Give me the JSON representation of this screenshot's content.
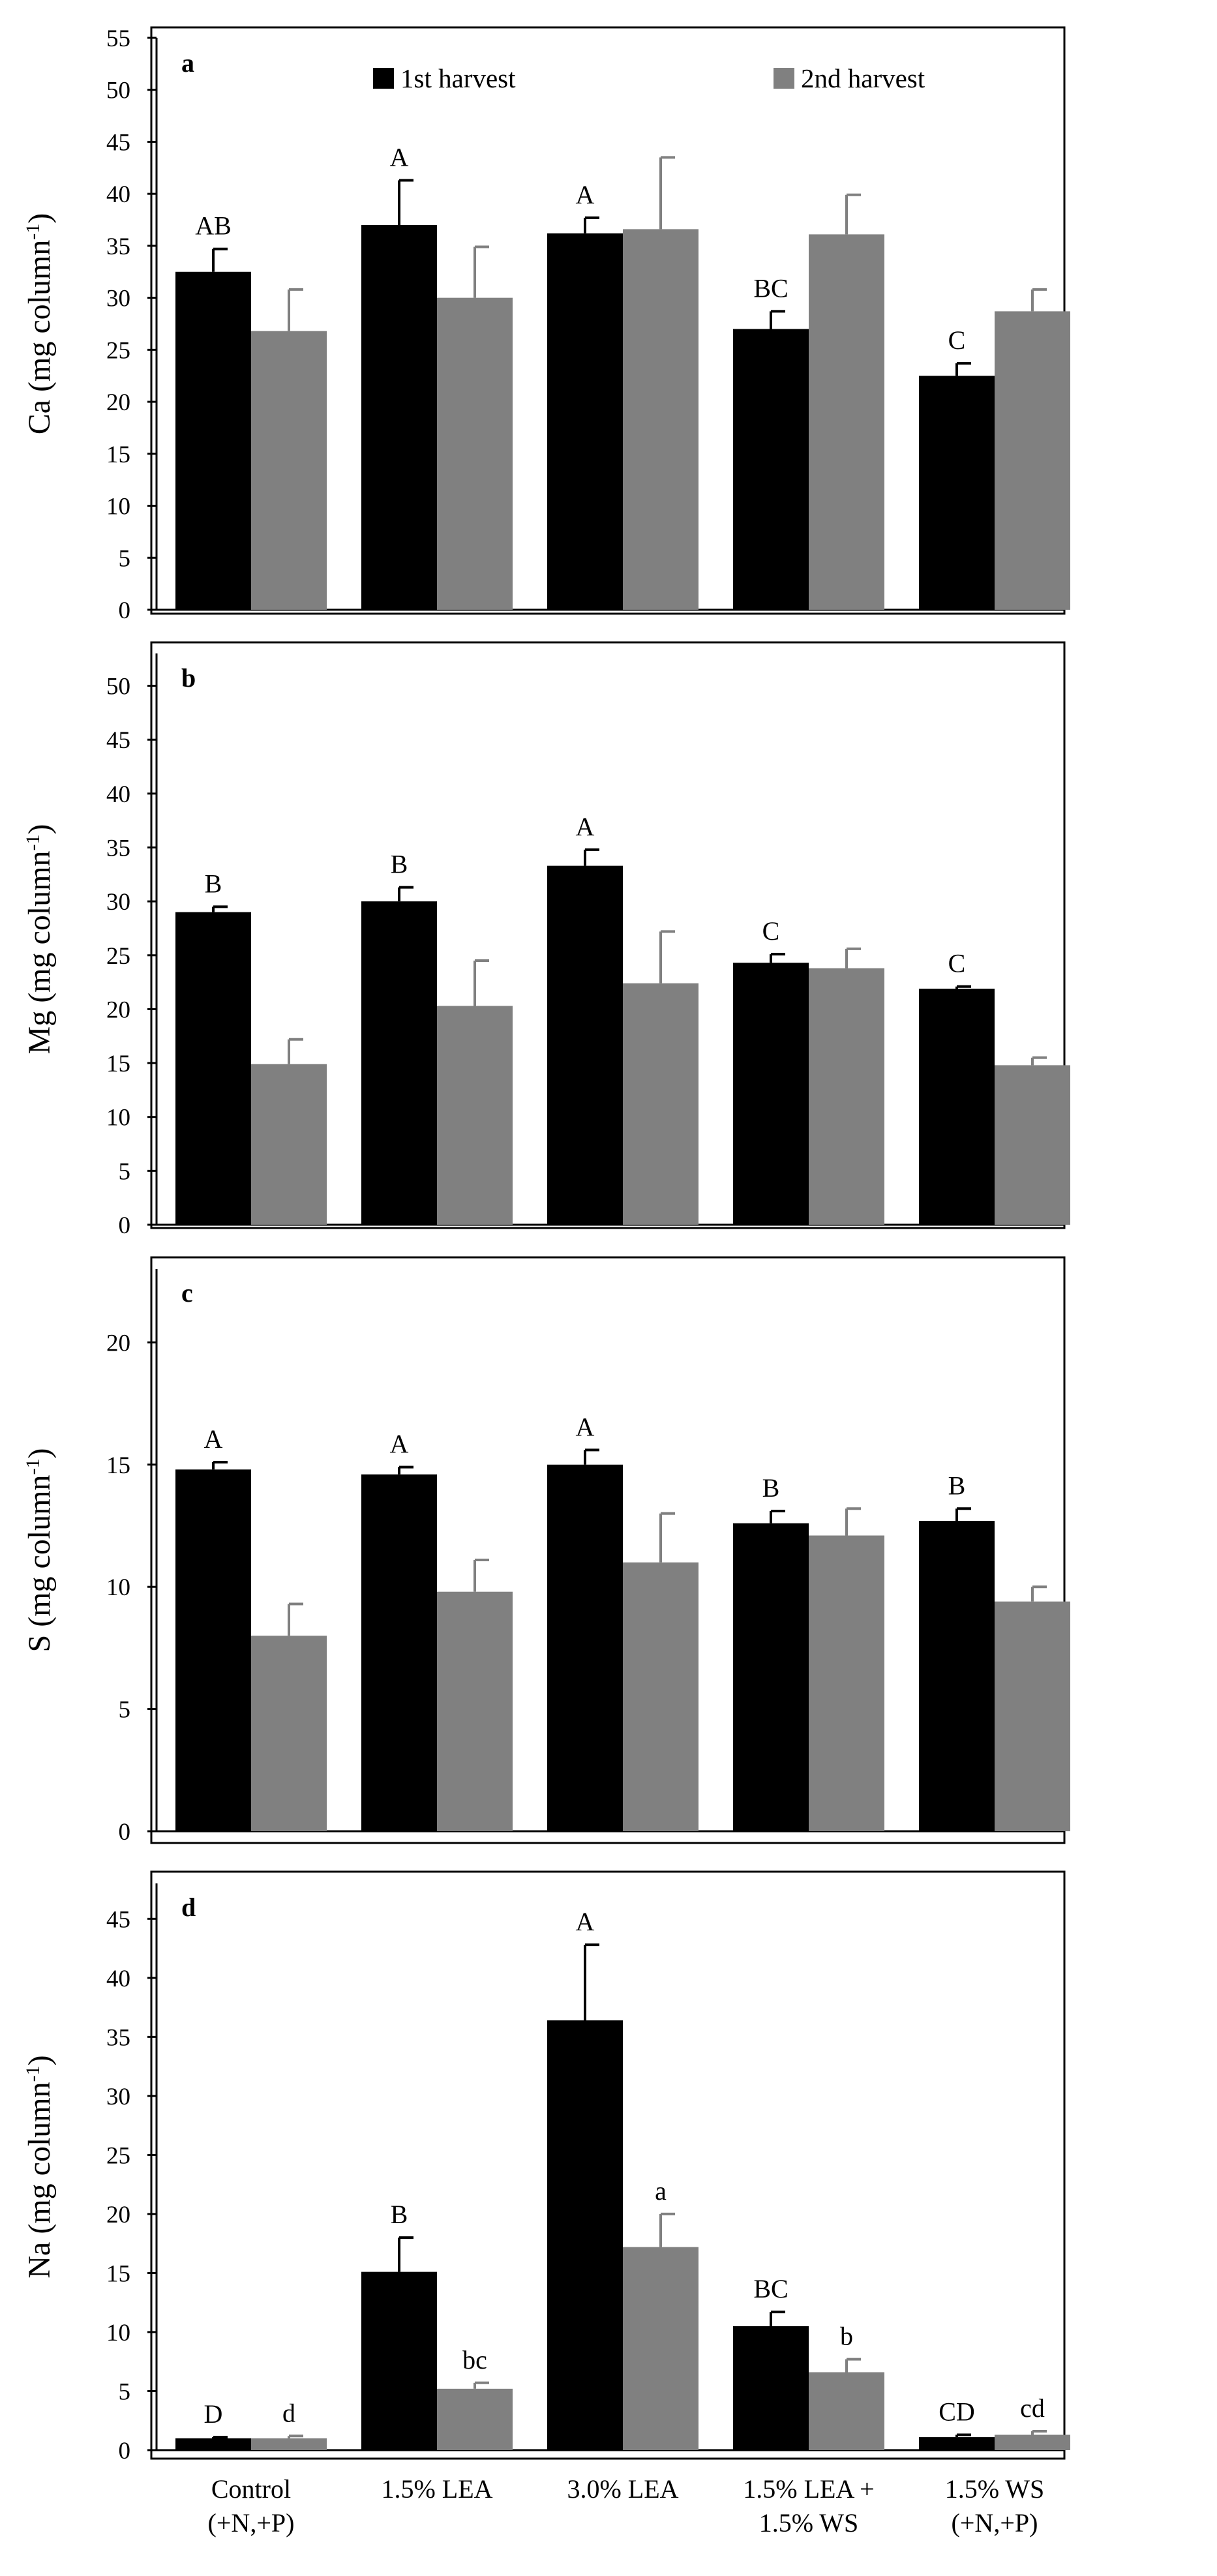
{
  "legend": {
    "series1": "1st harvest",
    "series2": "2nd harvest",
    "colors": {
      "series1": "#000000",
      "series2": "#808080"
    }
  },
  "categories": [
    [
      "Control",
      "(+N,+P)"
    ],
    [
      "1.5% LEA"
    ],
    [
      "3.0% LEA"
    ],
    [
      "1.5% LEA +",
      "1.5% WS"
    ],
    [
      "1.5% WS",
      "(+N,+P)"
    ]
  ],
  "chart_data": [
    {
      "type": "bar",
      "panel": "a",
      "ylabel_main": "Ca (mg column",
      "ylabel_sup": "-1",
      "ylabel_end": ")",
      "ylim": [
        0,
        55
      ],
      "ytick_step": 5,
      "categories": [
        "Control (+N,+P)",
        "1.5% LEA",
        "3.0% LEA",
        "1.5% LEA + 1.5% WS",
        "1.5% WS (+N,+P)"
      ],
      "series": [
        {
          "name": "1st harvest",
          "values": [
            32.5,
            37.0,
            36.2,
            27.0,
            22.5
          ],
          "errors": [
            2.2,
            4.3,
            1.5,
            1.7,
            1.2
          ]
        },
        {
          "name": "2nd harvest",
          "values": [
            26.8,
            30.0,
            36.6,
            36.1,
            28.7
          ],
          "errors": [
            4.0,
            4.9,
            6.9,
            3.8,
            2.1
          ]
        }
      ],
      "letters1": [
        "AB",
        "A",
        "A",
        "BC",
        "C"
      ],
      "letters2": [
        "",
        "",
        "",
        "",
        ""
      ]
    },
    {
      "type": "bar",
      "panel": "b",
      "ylabel_main": "Mg (mg column",
      "ylabel_sup": "-1",
      "ylabel_end": ")",
      "ylim": [
        0,
        53
      ],
      "ytick_max": 50,
      "ytick_step": 5,
      "categories": [
        "Control (+N,+P)",
        "1.5% LEA",
        "3.0% LEA",
        "1.5% LEA + 1.5% WS",
        "1.5% WS (+N,+P)"
      ],
      "series": [
        {
          "name": "1st harvest",
          "values": [
            29.0,
            30.0,
            33.3,
            24.3,
            21.9
          ],
          "errors": [
            0.5,
            1.3,
            1.5,
            0.8,
            0.2
          ]
        },
        {
          "name": "2nd harvest",
          "values": [
            14.9,
            20.3,
            22.4,
            23.8,
            14.8
          ],
          "errors": [
            2.3,
            4.2,
            4.8,
            1.8,
            0.7
          ]
        }
      ],
      "letters1": [
        "B",
        "B",
        "A",
        "C",
        "C"
      ],
      "letters2": [
        "",
        "",
        "",
        "",
        ""
      ]
    },
    {
      "type": "bar",
      "panel": "c",
      "ylabel_main": "S (mg column",
      "ylabel_sup": "-1",
      "ylabel_end": ")",
      "ylim": [
        0,
        23
      ],
      "ytick_max": 20,
      "ytick_step": 5,
      "categories": [
        "Control (+N,+P)",
        "1.5% LEA",
        "3.0% LEA",
        "1.5% LEA + 1.5% WS",
        "1.5% WS (+N,+P)"
      ],
      "series": [
        {
          "name": "1st harvest",
          "values": [
            14.8,
            14.6,
            15.0,
            12.6,
            12.7
          ],
          "errors": [
            0.3,
            0.3,
            0.6,
            0.5,
            0.5
          ]
        },
        {
          "name": "2nd harvest",
          "values": [
            8.0,
            9.8,
            11.0,
            12.1,
            9.4
          ],
          "errors": [
            1.3,
            1.3,
            2.0,
            1.1,
            0.6
          ]
        }
      ],
      "letters1": [
        "A",
        "A",
        "A",
        "B",
        "B"
      ],
      "letters2": [
        "",
        "",
        "",
        "",
        ""
      ]
    },
    {
      "type": "bar",
      "panel": "d",
      "ylabel_main": "Na (mg column",
      "ylabel_sup": "-1",
      "ylabel_end": ")",
      "ylim": [
        0,
        48
      ],
      "ytick_max": 45,
      "ytick_step": 5,
      "categories": [
        "Control (+N,+P)",
        "1.5% LEA",
        "3.0% LEA",
        "1.5% LEA + 1.5% WS",
        "1.5% WS (+N,+P)"
      ],
      "series": [
        {
          "name": "1st harvest",
          "values": [
            1.0,
            15.1,
            36.4,
            10.5,
            1.1
          ],
          "errors": [
            0.1,
            2.9,
            6.4,
            1.2,
            0.2
          ]
        },
        {
          "name": "2nd harvest",
          "values": [
            1.0,
            5.2,
            17.2,
            6.6,
            1.3
          ],
          "errors": [
            0.2,
            0.5,
            2.8,
            1.1,
            0.3
          ]
        }
      ],
      "letters1": [
        "D",
        "B",
        "A",
        "BC",
        "CD"
      ],
      "letters2": [
        "d",
        "bc",
        "a",
        "b",
        "cd"
      ]
    }
  ]
}
